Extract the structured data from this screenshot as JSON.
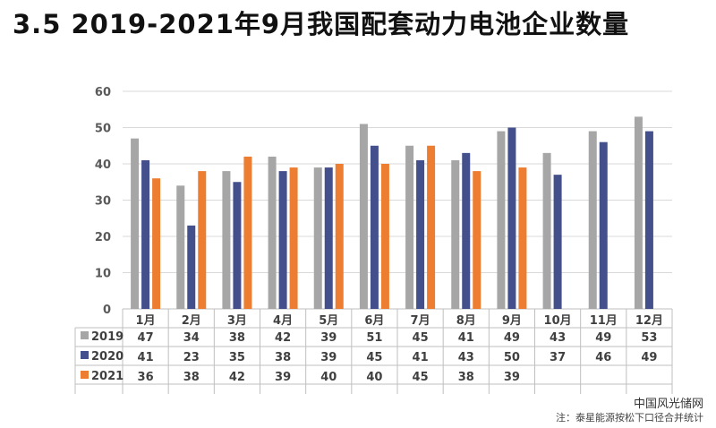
{
  "title": "3.5 2019-2021年9月我国配套动力电池企业数量",
  "note": "注：泰星能源按松下口径合并统计",
  "watermark": "中国风光储网",
  "colors": {
    "2019": "#a6a6a6",
    "2020": "#44508c",
    "2021": "#ed7d31"
  },
  "chart_data": {
    "type": "bar",
    "title": "",
    "xlabel": "",
    "ylabel": "",
    "ylim": [
      0,
      60
    ],
    "yticks": [
      0,
      10,
      20,
      30,
      40,
      50,
      60
    ],
    "grid": true,
    "legend": "data-table",
    "categories": [
      "1月",
      "2月",
      "3月",
      "4月",
      "5月",
      "6月",
      "7月",
      "8月",
      "9月",
      "10月",
      "11月",
      "12月"
    ],
    "series": [
      {
        "name": "2019",
        "values": [
          47,
          34,
          38,
          42,
          39,
          51,
          45,
          41,
          49,
          43,
          49,
          53
        ]
      },
      {
        "name": "2020",
        "values": [
          41,
          23,
          35,
          38,
          39,
          45,
          41,
          43,
          50,
          37,
          46,
          49
        ]
      },
      {
        "name": "2021",
        "values": [
          36,
          38,
          42,
          39,
          40,
          40,
          45,
          38,
          39,
          null,
          null,
          null
        ]
      }
    ]
  }
}
